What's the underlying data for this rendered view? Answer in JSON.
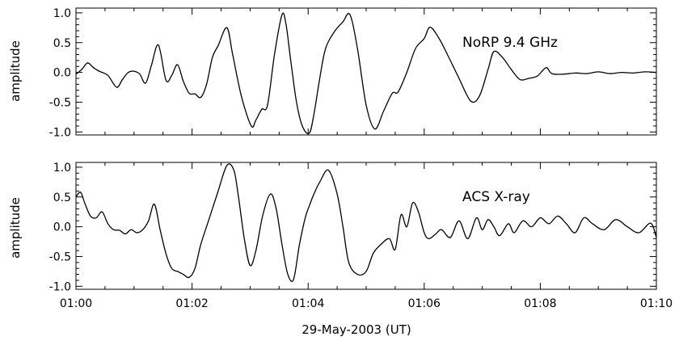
{
  "chart_data": [
    {
      "type": "line",
      "name": "top-panel",
      "annotation": "NoRP 9.4 GHz",
      "ylabel": "amplitude",
      "xlim": [
        0,
        10
      ],
      "ylim": [
        -1.05,
        1.08
      ],
      "x_ticks": [
        0,
        2,
        4,
        6,
        8,
        10
      ],
      "x_tick_labels": [],
      "y_ticks": [
        -1.0,
        -0.5,
        0.0,
        0.5,
        1.0
      ],
      "y_tick_labels": [
        "-1.0",
        "-0.5",
        "0.0",
        "0.5",
        "1.0"
      ],
      "x": [
        0.0,
        0.1,
        0.2,
        0.3,
        0.4,
        0.55,
        0.7,
        0.8,
        0.9,
        1.0,
        1.1,
        1.2,
        1.3,
        1.42,
        1.55,
        1.65,
        1.75,
        1.85,
        1.95,
        2.05,
        2.15,
        2.25,
        2.35,
        2.45,
        2.6,
        2.7,
        2.85,
        3.02,
        3.1,
        3.2,
        3.3,
        3.42,
        3.55,
        3.62,
        3.7,
        3.8,
        3.9,
        4.02,
        4.1,
        4.2,
        4.3,
        4.45,
        4.6,
        4.72,
        4.85,
        5.0,
        5.15,
        5.3,
        5.45,
        5.55,
        5.7,
        5.85,
        6.0,
        6.1,
        6.25,
        6.4,
        6.6,
        6.8,
        6.95,
        7.1,
        7.2,
        7.35,
        7.5,
        7.65,
        7.8,
        7.95,
        8.1,
        8.2,
        8.4,
        8.6,
        8.8,
        9.0,
        9.2,
        9.4,
        9.6,
        9.8,
        10.0
      ],
      "y": [
        -0.03,
        0.05,
        0.16,
        0.08,
        0.02,
        -0.05,
        -0.25,
        -0.12,
        0.0,
        0.02,
        -0.03,
        -0.18,
        0.12,
        0.46,
        -0.13,
        -0.05,
        0.13,
        -0.15,
        -0.35,
        -0.36,
        -0.42,
        -0.2,
        0.25,
        0.45,
        0.75,
        0.3,
        -0.4,
        -0.9,
        -0.8,
        -0.62,
        -0.55,
        0.3,
        0.97,
        0.8,
        0.2,
        -0.5,
        -0.9,
        -1.02,
        -0.7,
        -0.1,
        0.4,
        0.68,
        0.85,
        0.97,
        0.4,
        -0.55,
        -0.95,
        -0.65,
        -0.35,
        -0.33,
        0.0,
        0.4,
        0.57,
        0.76,
        0.58,
        0.3,
        -0.1,
        -0.48,
        -0.4,
        0.05,
        0.35,
        0.25,
        0.05,
        -0.12,
        -0.1,
        -0.06,
        0.08,
        -0.02,
        -0.03,
        -0.01,
        -0.02,
        0.01,
        -0.02,
        0.0,
        -0.01,
        0.01,
        0.0
      ]
    },
    {
      "type": "line",
      "name": "bottom-panel",
      "annotation": "ACS X-ray",
      "ylabel": "amplitude",
      "xlabel": "29-May-2003 (UT)",
      "xlim": [
        0,
        10
      ],
      "ylim": [
        -1.05,
        1.08
      ],
      "x_ticks": [
        0,
        2,
        4,
        6,
        8,
        10
      ],
      "x_tick_labels": [
        "01:00",
        "01:02",
        "01:04",
        "01:06",
        "01:08",
        "01:10"
      ],
      "y_ticks": [
        -1.0,
        -0.5,
        0.0,
        0.5,
        1.0
      ],
      "y_tick_labels": [
        "-1.0",
        "-0.5",
        "0.0",
        "0.5",
        "1.0"
      ],
      "x": [
        0.0,
        0.08,
        0.15,
        0.25,
        0.35,
        0.45,
        0.55,
        0.65,
        0.75,
        0.85,
        0.95,
        1.05,
        1.15,
        1.25,
        1.35,
        1.45,
        1.55,
        1.65,
        1.75,
        1.85,
        1.95,
        2.05,
        2.15,
        2.3,
        2.45,
        2.6,
        2.72,
        2.8,
        2.9,
        3.0,
        3.1,
        3.22,
        3.35,
        3.45,
        3.55,
        3.65,
        3.75,
        3.85,
        3.95,
        4.02,
        4.1,
        4.2,
        4.35,
        4.5,
        4.6,
        4.7,
        4.85,
        5.0,
        5.12,
        5.25,
        5.4,
        5.5,
        5.6,
        5.7,
        5.8,
        5.9,
        6.0,
        6.08,
        6.2,
        6.3,
        6.45,
        6.6,
        6.75,
        6.9,
        7.0,
        7.1,
        7.2,
        7.3,
        7.45,
        7.55,
        7.7,
        7.85,
        8.0,
        8.15,
        8.3,
        8.45,
        8.6,
        8.75,
        8.9,
        9.1,
        9.3,
        9.5,
        9.7,
        9.9,
        10.0
      ],
      "y": [
        0.5,
        0.58,
        0.4,
        0.18,
        0.15,
        0.25,
        0.05,
        -0.05,
        -0.06,
        -0.12,
        -0.05,
        -0.1,
        -0.05,
        0.1,
        0.38,
        -0.05,
        -0.45,
        -0.7,
        -0.75,
        -0.8,
        -0.85,
        -0.7,
        -0.3,
        0.15,
        0.6,
        1.03,
        0.95,
        0.5,
        -0.2,
        -0.65,
        -0.4,
        0.2,
        0.55,
        0.3,
        -0.3,
        -0.8,
        -0.88,
        -0.3,
        0.15,
        0.35,
        0.55,
        0.75,
        0.95,
        0.55,
        0.0,
        -0.6,
        -0.8,
        -0.75,
        -0.45,
        -0.3,
        -0.2,
        -0.38,
        0.2,
        0.0,
        0.4,
        0.25,
        -0.1,
        -0.2,
        -0.12,
        -0.05,
        -0.18,
        0.1,
        -0.2,
        0.15,
        -0.05,
        0.12,
        0.0,
        -0.15,
        0.05,
        -0.1,
        0.1,
        0.0,
        0.15,
        0.05,
        0.18,
        0.05,
        -0.1,
        0.15,
        0.05,
        -0.05,
        0.12,
        0.0,
        -0.1,
        0.06,
        -0.18
      ]
    }
  ]
}
